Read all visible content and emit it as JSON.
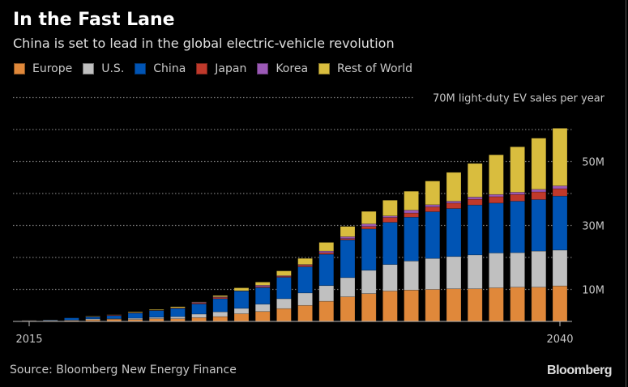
{
  "chart_data": {
    "type": "bar",
    "stacked": true,
    "title": "In the Fast Lane",
    "subtitle": "China is set to lead in the global electric-vehicle revolution",
    "categories": [
      2015,
      2016,
      2017,
      2018,
      2019,
      2020,
      2021,
      2022,
      2023,
      2024,
      2025,
      2026,
      2027,
      2028,
      2029,
      2030,
      2031,
      2032,
      2033,
      2034,
      2035,
      2036,
      2037,
      2038,
      2039,
      2040
    ],
    "x_tick_labels": [
      "2015",
      "2040"
    ],
    "ylim": [
      0,
      70
    ],
    "y_gridlines": [
      10,
      20,
      30,
      40,
      50,
      60,
      70
    ],
    "y_tick_labels": [
      {
        "value": 10,
        "label": "10M"
      },
      {
        "value": 30,
        "label": "30M"
      },
      {
        "value": 50,
        "label": "50M"
      },
      {
        "value": 70,
        "label": "70M light-duty EV sales per year"
      }
    ],
    "grid": true,
    "legend_position": "top-left",
    "series": [
      {
        "name": "Europe",
        "color": "#e0883a",
        "values": [
          0.2,
          0.2,
          0.3,
          0.5,
          0.7,
          0.6,
          0.85,
          0.85,
          1.2,
          1.5,
          2.4,
          3.1,
          4.0,
          5.0,
          6.3,
          7.7,
          8.7,
          9.5,
          9.8,
          10.0,
          10.2,
          10.2,
          10.5,
          10.7,
          10.7,
          11.1
        ]
      },
      {
        "name": "U.S.",
        "color": "#c0c0c0",
        "values": [
          0.1,
          0.2,
          0.1,
          0.3,
          0.15,
          0.4,
          0.45,
          0.65,
          1.1,
          1.5,
          1.7,
          2.3,
          3.1,
          3.9,
          4.9,
          6.0,
          7.3,
          8.3,
          9.1,
          9.7,
          10.1,
          10.6,
          10.9,
          10.8,
          11.3,
          11.2
        ]
      },
      {
        "name": "China",
        "color": "#0054b4",
        "values": [
          0.0,
          0.1,
          0.7,
          0.6,
          0.95,
          1.6,
          2.1,
          2.55,
          3.2,
          4.1,
          5.4,
          5.2,
          6.7,
          8.2,
          9.8,
          11.8,
          12.9,
          13.2,
          13.7,
          14.6,
          15.0,
          15.6,
          15.6,
          16.1,
          16.1,
          16.9
        ]
      },
      {
        "name": "Japan",
        "color": "#c0392b",
        "values": [
          0.0,
          0.0,
          0.0,
          0.05,
          0.2,
          0.1,
          0.05,
          0.15,
          0.3,
          0.4,
          0.05,
          0.3,
          0.3,
          0.5,
          0.5,
          0.4,
          0.8,
          1.5,
          1.3,
          1.5,
          1.7,
          1.8,
          2.0,
          2.1,
          2.4,
          2.3
        ]
      },
      {
        "name": "Korea",
        "color": "#9b59b6",
        "values": [
          0.0,
          0.0,
          0.0,
          0.05,
          0.05,
          0.05,
          0.05,
          0.05,
          0.2,
          0.2,
          0.05,
          0.4,
          0.2,
          0.2,
          0.5,
          0.6,
          0.8,
          0.5,
          0.9,
          0.7,
          0.6,
          0.7,
          0.7,
          0.7,
          0.8,
          0.9
        ]
      },
      {
        "name": "Rest of World",
        "color": "#d9bd3e",
        "values": [
          0.0,
          0.0,
          0.0,
          0.15,
          0.05,
          0.25,
          0.25,
          0.35,
          0.1,
          0.4,
          0.9,
          1.0,
          1.5,
          1.9,
          2.7,
          3.2,
          3.9,
          4.9,
          5.9,
          7.4,
          9.0,
          10.5,
          12.4,
          14.2,
          16.0,
          18.0
        ]
      }
    ]
  },
  "footer": {
    "source": "Source: Bloomberg New Energy Finance",
    "logo": "Bloomberg"
  }
}
